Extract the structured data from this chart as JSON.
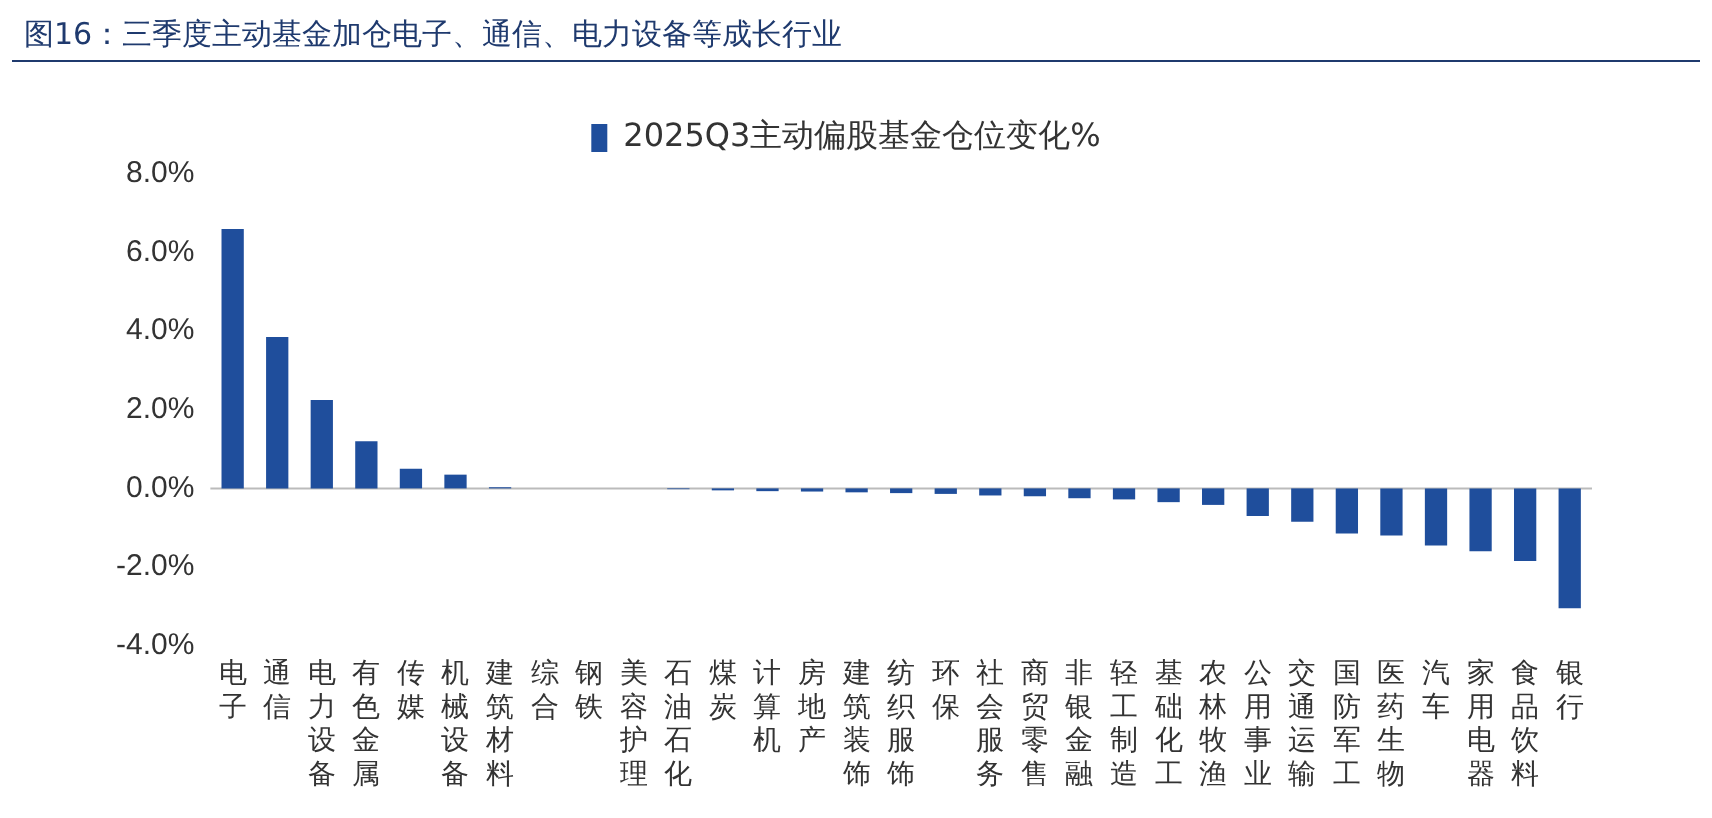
{
  "chart_data": {
    "type": "bar",
    "title": "图16：三季度主动基金加仓电子、通信、电力设备等成长行业",
    "categories": [
      "电子",
      "通信",
      "电力设备",
      "有色金属",
      "传媒",
      "机械设备",
      "建筑材料",
      "综合",
      "钢铁",
      "美容护理",
      "石油石化",
      "煤炭",
      "计算机",
      "房地产",
      "建筑装饰",
      "纺织服饰",
      "环保",
      "社会服务",
      "商贸零售",
      "非银金融",
      "轻工制造",
      "基础化工",
      "农林牧渔",
      "公用事业",
      "交通运输",
      "国防军工",
      "医药生物",
      "汽车",
      "家用电器",
      "食品饮料",
      "银行"
    ],
    "series": [
      {
        "name": "2025Q3主动偏股基金仓位变化%",
        "color": "#1f4e9c",
        "values": [
          6.6,
          3.85,
          2.25,
          1.2,
          0.5,
          0.35,
          0.03,
          null,
          null,
          0.0,
          -0.02,
          -0.05,
          -0.07,
          -0.08,
          -0.1,
          -0.12,
          -0.14,
          -0.18,
          -0.2,
          -0.25,
          -0.28,
          -0.35,
          -0.42,
          -0.7,
          -0.85,
          -1.15,
          -1.2,
          -1.45,
          -1.6,
          -1.85,
          -3.05
        ]
      }
    ],
    "ylim": [
      -4,
      8
    ],
    "yticks": [
      {
        "value": -4,
        "label": "-4.0%"
      },
      {
        "value": -2,
        "label": "-2.0%"
      },
      {
        "value": 0,
        "label": "0.0%"
      },
      {
        "value": 2,
        "label": "2.0%"
      },
      {
        "value": 4,
        "label": "4.0%"
      },
      {
        "value": 6,
        "label": "6.0%"
      },
      {
        "value": 8,
        "label": "8.0%"
      }
    ],
    "ref_lines": [
      {
        "axis": "y",
        "value": 0,
        "color": "#bbbbbb"
      }
    ],
    "grid": false,
    "legend": "top"
  }
}
